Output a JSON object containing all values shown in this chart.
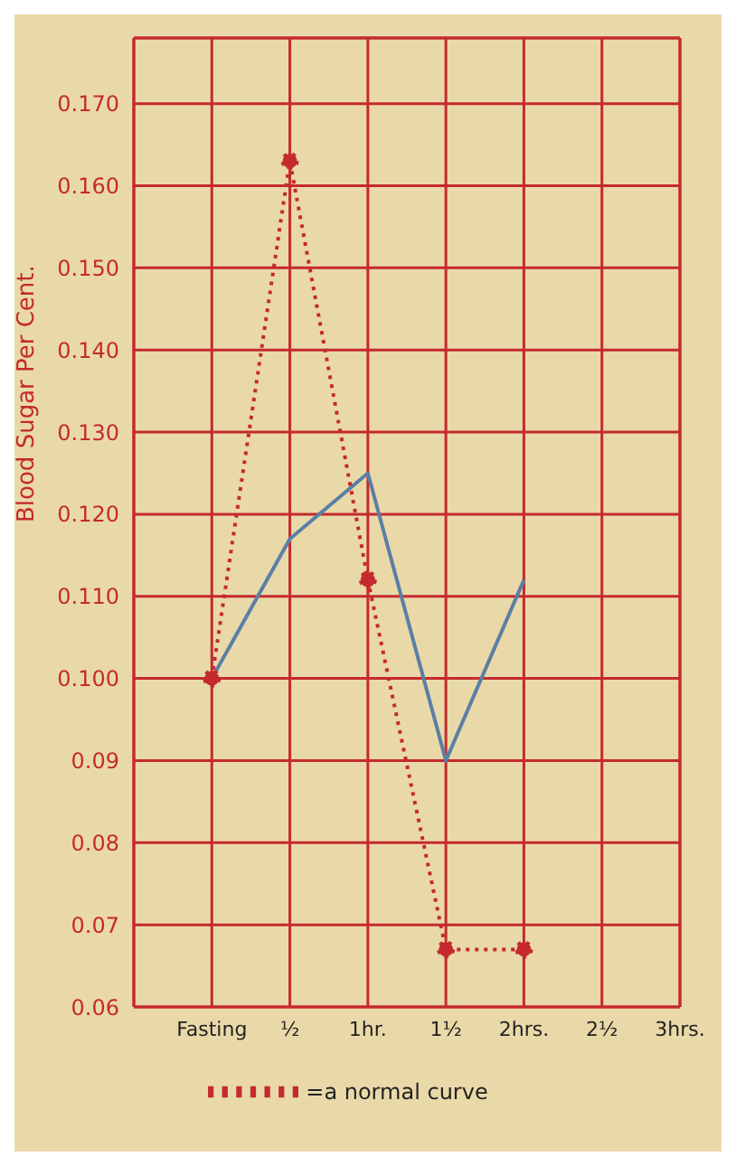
{
  "chart_data": {
    "type": "line",
    "ylabel": "Blood Sugar Per Cent.",
    "categories": [
      null,
      "Fasting",
      "½",
      "1hr.",
      "1½",
      "2hrs.",
      "2½",
      "3hrs."
    ],
    "series": [
      {
        "color": "#5b7fa6",
        "values": [
          null,
          0.1,
          0.117,
          0.125,
          0.09,
          0.112,
          null,
          null
        ],
        "line_style": "solid",
        "marker": "none"
      },
      {
        "name": "=a normal curve",
        "color": "#c42a2e",
        "values": [
          null,
          0.1,
          0.163,
          0.112,
          0.067,
          0.067,
          null,
          null
        ],
        "line_style": "dotted",
        "marker": "circle"
      }
    ],
    "ylim": [
      0.06,
      0.178
    ],
    "yticks": [
      0.06,
      0.07,
      0.08,
      0.09,
      {
        "value": 0.1,
        "label": "0.100"
      },
      {
        "value": 0.11,
        "label": "0.110"
      },
      {
        "value": 0.12,
        "label": "0.120"
      },
      {
        "value": 0.13,
        "label": "0.130"
      },
      {
        "value": 0.14,
        "label": "0.140"
      },
      {
        "value": 0.15,
        "label": "0.150"
      },
      {
        "value": 0.16,
        "label": "0.160"
      },
      {
        "value": 0.17,
        "label": "0.170"
      }
    ],
    "grid": true,
    "legend": "bottom"
  }
}
